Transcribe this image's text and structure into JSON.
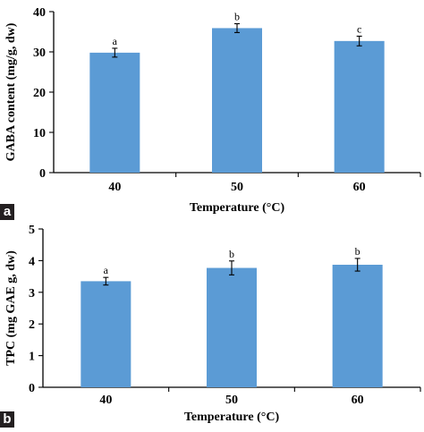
{
  "panels": [
    {
      "label": "a"
    },
    {
      "label": "b"
    }
  ],
  "chart_data": [
    {
      "type": "bar",
      "panel": "a",
      "categories": [
        "40",
        "50",
        "60"
      ],
      "values": [
        29.8,
        35.9,
        32.7
      ],
      "errors": [
        1.1,
        1.1,
        1.2
      ],
      "significance_letters": [
        "a",
        "b",
        "c"
      ],
      "xlabel": "Temperature (°C)",
      "ylabel": "GABA content (mg/g, dw)",
      "ylim": [
        0,
        40
      ],
      "yticks": [
        0,
        10,
        20,
        30,
        40
      ],
      "bar_color": "#5b9bd5",
      "grid": false,
      "legend": "none"
    },
    {
      "type": "bar",
      "panel": "b",
      "categories": [
        "40",
        "50",
        "60"
      ],
      "values": [
        3.35,
        3.77,
        3.87
      ],
      "errors": [
        0.12,
        0.22,
        0.2
      ],
      "significance_letters": [
        "a",
        "b",
        "b"
      ],
      "xlabel": "Temperature (°C)",
      "ylabel": "TPC (mg GAE g, dw)",
      "ylim": [
        0,
        5
      ],
      "yticks": [
        0,
        1,
        2,
        3,
        4,
        5
      ],
      "bar_color": "#5b9bd5",
      "grid": false,
      "legend": "none"
    }
  ]
}
